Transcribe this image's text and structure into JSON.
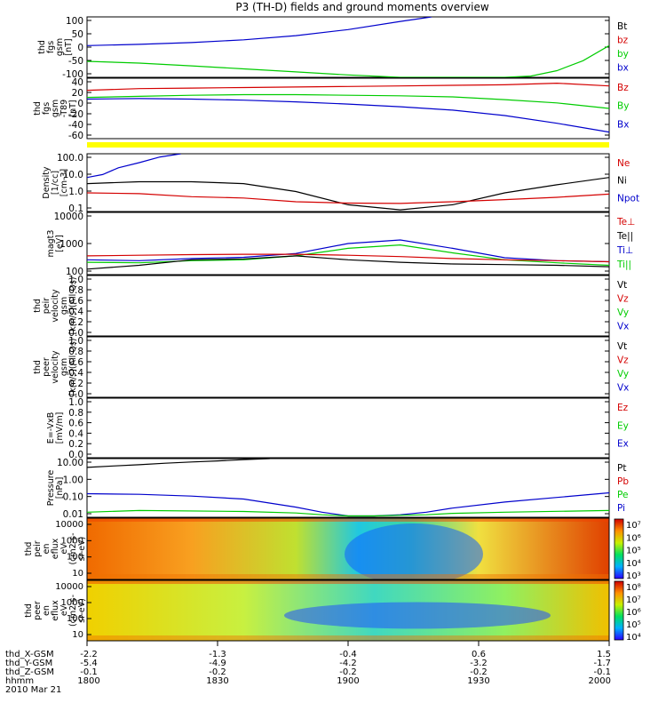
{
  "title": "P3 (TH-D) fields and ground moments overview",
  "colors": {
    "black": "#000000",
    "red": "#d40000",
    "green": "#00cc00",
    "blue": "#0000cc",
    "yellow": "#ffff00"
  },
  "chart_data": [
    {
      "type": "line",
      "ylabel": [
        "thd",
        "fgs",
        "gsm",
        "[nT]"
      ],
      "yticks": [
        "100",
        "50",
        "0",
        "-50",
        "-100"
      ],
      "ylim": [
        -100,
        100
      ],
      "legend": [
        {
          "text": "Bt",
          "color": "black"
        },
        {
          "text": "bz",
          "color": "red"
        },
        {
          "text": "by",
          "color": "green"
        },
        {
          "text": "bx",
          "color": "blue"
        }
      ],
      "series": [
        {
          "color": "blue",
          "x": [
            0,
            0.1,
            0.2,
            0.3,
            0.4,
            0.5,
            0.6,
            0.66
          ],
          "y": [
            5,
            9,
            15,
            24,
            38,
            58,
            85,
            100
          ]
        },
        {
          "color": "green",
          "x": [
            0,
            0.1,
            0.2,
            0.3,
            0.4,
            0.5,
            0.6,
            0.7,
            0.8,
            0.85,
            0.9,
            0.95,
            1.0
          ],
          "y": [
            -47,
            -53,
            -62,
            -72,
            -82,
            -92,
            -100,
            -100,
            -100,
            -96,
            -78,
            -45,
            5
          ]
        }
      ]
    },
    {
      "type": "line",
      "ylabel": [
        "thd",
        "fgs",
        "gsm",
        "-T89",
        "[nT]"
      ],
      "yticks": [
        "40",
        "20",
        "0",
        "-20",
        "-40",
        "-60"
      ],
      "ylim": [
        -70,
        40
      ],
      "legend": [
        {
          "text": "Bz",
          "color": "red"
        },
        {
          "text": "By",
          "color": "green"
        },
        {
          "text": "Bx",
          "color": "blue"
        }
      ],
      "series": [
        {
          "color": "red",
          "x": [
            0,
            0.1,
            0.2,
            0.3,
            0.4,
            0.5,
            0.6,
            0.7,
            0.8,
            0.9,
            1.0
          ],
          "y": [
            18,
            21,
            22,
            23,
            24,
            25,
            26,
            27,
            28,
            31,
            26
          ]
        },
        {
          "color": "green",
          "x": [
            0,
            0.1,
            0.2,
            0.3,
            0.4,
            0.5,
            0.6,
            0.7,
            0.8,
            0.9,
            1.0
          ],
          "y": [
            5,
            7,
            9,
            10,
            10,
            9,
            8,
            6,
            1,
            -5,
            -15
          ]
        },
        {
          "color": "blue",
          "x": [
            0,
            0.1,
            0.2,
            0.3,
            0.4,
            0.5,
            0.6,
            0.7,
            0.8,
            0.9,
            1.0
          ],
          "y": [
            2,
            3,
            2,
            0,
            -3,
            -7,
            -12,
            -18,
            -28,
            -42,
            -58
          ]
        }
      ]
    },
    {
      "type": "line",
      "scale": "log",
      "ylabel": [
        "Density",
        "[1/cc]",
        "[cm-3]"
      ],
      "yticks": [
        "100.0",
        "10.0",
        "1.0",
        "0.1"
      ],
      "ylim": [
        0.08,
        200
      ],
      "legend": [
        {
          "text": "Ne",
          "color": "red"
        },
        {
          "text": "Ni",
          "color": "black"
        },
        {
          "text": "Npot",
          "color": "blue"
        }
      ],
      "series": [
        {
          "color": "blue",
          "x": [
            0,
            0.03,
            0.06,
            0.1,
            0.14,
            0.18
          ],
          "y": [
            8,
            12,
            30,
            60,
            130,
            200
          ]
        },
        {
          "color": "black",
          "x": [
            0,
            0.1,
            0.2,
            0.3,
            0.4,
            0.5,
            0.6,
            0.7,
            0.8,
            0.9,
            1.0
          ],
          "y": [
            3.5,
            4.5,
            4.5,
            3.5,
            1.2,
            0.2,
            0.1,
            0.2,
            1.0,
            3.0,
            8.0
          ]
        },
        {
          "color": "red",
          "x": [
            0,
            0.1,
            0.2,
            0.3,
            0.4,
            0.5,
            0.6,
            0.7,
            0.8,
            0.9,
            1.0
          ],
          "y": [
            1.0,
            0.9,
            0.6,
            0.5,
            0.3,
            0.25,
            0.24,
            0.3,
            0.4,
            0.55,
            0.85
          ]
        }
      ]
    },
    {
      "type": "line",
      "scale": "log",
      "ylabel": [
        "magt3",
        "[eV]"
      ],
      "yticks": [
        "10000",
        "1000",
        "100"
      ],
      "ylim": [
        100,
        10000
      ],
      "legend": [
        {
          "text": "Te⊥",
          "color": "red"
        },
        {
          "text": "Te||",
          "color": "black"
        },
        {
          "text": "Ti⊥",
          "color": "blue"
        },
        {
          "text": "Ti||",
          "color": "green"
        }
      ],
      "series": [
        {
          "color": "blue",
          "x": [
            0,
            0.1,
            0.2,
            0.3,
            0.4,
            0.5,
            0.6,
            0.7,
            0.8,
            0.9,
            1.0
          ],
          "y": [
            300,
            280,
            330,
            360,
            480,
            1000,
            1300,
            700,
            350,
            280,
            260
          ]
        },
        {
          "color": "green",
          "x": [
            0,
            0.1,
            0.2,
            0.3,
            0.4,
            0.5,
            0.6,
            0.7,
            0.8,
            0.9,
            1.0
          ],
          "y": [
            250,
            240,
            280,
            300,
            400,
            700,
            900,
            500,
            300,
            240,
            200
          ]
        },
        {
          "color": "red",
          "x": [
            0,
            0.1,
            0.2,
            0.3,
            0.4,
            0.5,
            0.6,
            0.7,
            0.8,
            0.9,
            1.0
          ],
          "y": [
            400,
            420,
            440,
            450,
            450,
            420,
            380,
            330,
            300,
            280,
            260
          ]
        },
        {
          "color": "black",
          "x": [
            0,
            0.1,
            0.2,
            0.3,
            0.4,
            0.5,
            0.6,
            0.7,
            0.8,
            0.9,
            1.0
          ],
          "y": [
            150,
            200,
            300,
            320,
            400,
            300,
            250,
            220,
            210,
            200,
            180
          ]
        }
      ]
    },
    {
      "type": "line",
      "ylabel": [
        "thd",
        "peir",
        "velocity",
        "gsm",
        "[km/s](All Qs)"
      ],
      "yticks": [
        "1.0",
        "0.8",
        "0.6",
        "0.4",
        "0.2",
        "0.0"
      ],
      "ylim": [
        0,
        1
      ],
      "legend": [
        {
          "text": "Vt",
          "color": "black"
        },
        {
          "text": "Vz",
          "color": "red"
        },
        {
          "text": "Vy",
          "color": "green"
        },
        {
          "text": "Vx",
          "color": "blue"
        }
      ],
      "series": []
    },
    {
      "type": "line",
      "ylabel": [
        "thd",
        "peer",
        "velocity",
        "gsm",
        "[km/s](All Qs)"
      ],
      "yticks": [
        "1.0",
        "0.8",
        "0.6",
        "0.4",
        "0.2",
        "0.0"
      ],
      "ylim": [
        0,
        1
      ],
      "legend": [
        {
          "text": "Vt",
          "color": "black"
        },
        {
          "text": "Vz",
          "color": "red"
        },
        {
          "text": "Vy",
          "color": "green"
        },
        {
          "text": "Vx",
          "color": "blue"
        }
      ],
      "series": []
    },
    {
      "type": "line",
      "ylabel": [
        "E=-VxB",
        "[mV/m]"
      ],
      "yticks": [
        "1.0",
        "0.8",
        "0.6",
        "0.4",
        "0.2",
        "0.0"
      ],
      "ylim": [
        0,
        1
      ],
      "legend": [
        {
          "text": "Ez",
          "color": "red"
        },
        {
          "text": "Ey",
          "color": "green"
        },
        {
          "text": "Ex",
          "color": "blue"
        }
      ],
      "series": []
    },
    {
      "type": "line",
      "scale": "log",
      "ylabel": [
        "Pressure",
        "[nPa]"
      ],
      "yticks": [
        "10.00",
        "1.00",
        "0.10",
        "0.01"
      ],
      "ylim": [
        0.01,
        30
      ],
      "legend": [
        {
          "text": "Pt",
          "color": "black"
        },
        {
          "text": "Pb",
          "color": "red"
        },
        {
          "text": "Pe",
          "color": "green"
        },
        {
          "text": "Pi",
          "color": "blue"
        }
      ],
      "series": [
        {
          "color": "black",
          "x": [
            0,
            0.05,
            0.1,
            0.15,
            0.2,
            0.25,
            0.3,
            0.35
          ],
          "y": [
            9,
            11,
            13,
            16,
            19,
            22,
            26,
            30
          ]
        },
        {
          "color": "blue",
          "x": [
            0,
            0.1,
            0.2,
            0.3,
            0.4,
            0.45,
            0.5,
            0.55,
            0.6,
            0.65,
            0.7,
            0.8,
            0.9,
            1.0
          ],
          "y": [
            0.25,
            0.23,
            0.18,
            0.12,
            0.04,
            0.02,
            0.012,
            0.012,
            0.014,
            0.02,
            0.035,
            0.08,
            0.15,
            0.28
          ]
        },
        {
          "color": "green",
          "x": [
            0,
            0.1,
            0.3,
            0.4,
            0.45,
            0.5,
            0.55,
            0.6,
            0.65,
            0.7,
            0.8,
            1.0
          ],
          "y": [
            0.02,
            0.025,
            0.022,
            0.018,
            0.014,
            0.012,
            0.012,
            0.013,
            0.014,
            0.017,
            0.02,
            0.025
          ]
        }
      ]
    },
    {
      "type": "heatmap",
      "ylabel": [
        "thd",
        "peir",
        "en",
        "eflux",
        "eV",
        "(cm2-s-",
        "sr-eV)"
      ],
      "yticks": [
        "10000",
        "1000",
        "100",
        "10"
      ],
      "colorbar_labels": [
        "10⁷",
        "10⁶",
        "10⁵",
        "10⁴",
        "10³"
      ]
    },
    {
      "type": "heatmap",
      "ylabel": [
        "thd",
        "peer",
        "en",
        "eflux",
        "eV",
        "(cm2-s-",
        "sr-eV)"
      ],
      "yticks": [
        "10000",
        "1000",
        "100",
        "10"
      ],
      "colorbar_labels": [
        "10⁸",
        "10⁷",
        "10⁶",
        "10⁵",
        "10⁴"
      ]
    }
  ],
  "x_axis": {
    "row_labels": [
      "thd_X-GSM",
      "thd_Y-GSM",
      "thd_Z-GSM",
      "hhmm",
      "2010 Mar 21"
    ],
    "columns": [
      [
        "-2.2",
        "-5.4",
        "-0.1",
        "1800"
      ],
      [
        "-1.3",
        "-4.9",
        "-0.2",
        "1830"
      ],
      [
        "-0.4",
        "-4.2",
        "-0.2",
        "1900"
      ],
      [
        "0.6",
        "-3.2",
        "-0.2",
        "1930"
      ],
      [
        "1.5",
        "-1.7",
        "-0.1",
        "2000"
      ]
    ]
  }
}
